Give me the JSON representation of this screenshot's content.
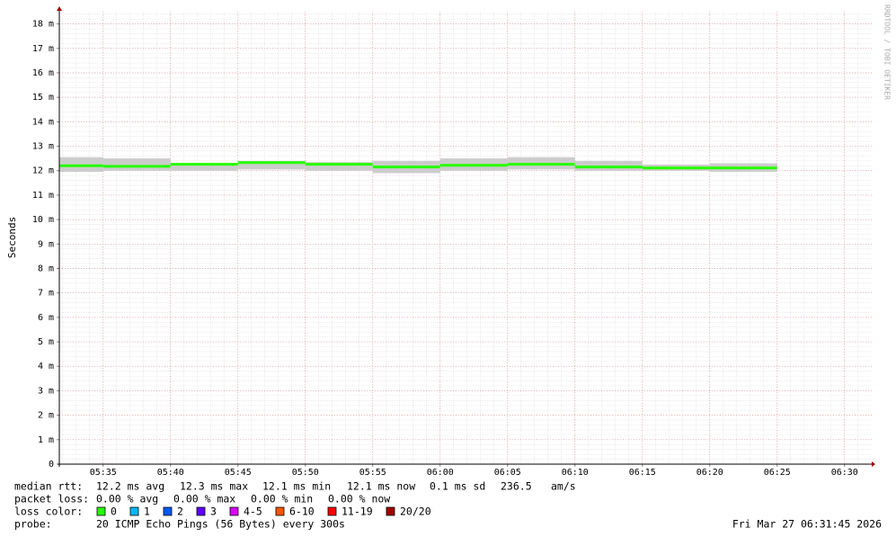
{
  "chart_data": {
    "type": "smokeping",
    "y_label": "Seconds",
    "watermark": "RRDTOOL / TOBI OETIKER",
    "xlim": [
      "05:31:45",
      "06:31:45"
    ],
    "xticks": [
      "05:35",
      "05:40",
      "05:45",
      "05:50",
      "05:55",
      "06:00",
      "06:05",
      "06:10",
      "06:15",
      "06:20",
      "06:25",
      "06:30"
    ],
    "x": [
      "05:35",
      "05:40",
      "05:45",
      "05:50",
      "05:55",
      "06:00",
      "06:05",
      "06:10",
      "06:15",
      "06:20",
      "06:25"
    ],
    "ylim": [
      0,
      0.0185
    ],
    "yticks": [
      0,
      {
        "value": 0.001,
        "label": "1 m"
      },
      {
        "value": 0.002,
        "label": "2 m"
      },
      {
        "value": 0.003,
        "label": "3 m"
      },
      {
        "value": 0.004,
        "label": "4 m"
      },
      {
        "value": 0.005,
        "label": "5 m"
      },
      {
        "value": 0.006,
        "label": "6 m"
      },
      {
        "value": 0.007,
        "label": "7 m"
      },
      {
        "value": 0.008,
        "label": "8 m"
      },
      {
        "value": 0.009,
        "label": "9 m"
      },
      {
        "value": 0.01,
        "label": "10 m"
      },
      {
        "value": 0.011,
        "label": "11 m"
      },
      {
        "value": 0.012,
        "label": "12 m"
      },
      {
        "value": 0.013,
        "label": "13 m"
      },
      {
        "value": 0.014,
        "label": "14 m"
      },
      {
        "value": 0.015,
        "label": "15 m"
      },
      {
        "value": 0.016,
        "label": "16 m"
      },
      {
        "value": 0.017,
        "label": "17 m"
      },
      {
        "value": 0.018,
        "label": "18 m"
      }
    ],
    "grid": true,
    "smoke": {
      "color": "#cccccc",
      "low": [
        0.01195,
        0.012,
        0.012,
        0.01205,
        0.012,
        0.0119,
        0.012,
        0.01205,
        0.012,
        0.012,
        0.01195
      ],
      "high": [
        0.01255,
        0.0125,
        0.0123,
        0.0124,
        0.01235,
        0.0124,
        0.0125,
        0.01255,
        0.0124,
        0.01225,
        0.0123
      ]
    },
    "series": [
      {
        "name": "median rtt:",
        "color": "#26ff00",
        "values": [
          0.0122,
          0.01218,
          0.01226,
          0.01233,
          0.01226,
          0.01215,
          0.01222,
          0.01226,
          0.01215,
          0.01211,
          0.01211
        ]
      }
    ],
    "stats": [
      {
        "label": "median rtt:",
        "items": [
          "12.2 ms avg",
          "12.3 ms max",
          "12.1 ms min",
          "12.1 ms now",
          "0.1 ms sd",
          "236.5",
          "am/s"
        ]
      },
      {
        "label": "packet loss:",
        "items": [
          "0.00 % avg",
          "0.00 % max",
          "0.00 % min",
          "0.00 % now"
        ]
      }
    ],
    "loss_colors": {
      "label": "loss color:",
      "entries": [
        {
          "name": "0",
          "color": "#26ff00"
        },
        {
          "name": "1",
          "color": "#00b8ff"
        },
        {
          "name": "2",
          "color": "#0059ff"
        },
        {
          "name": "3",
          "color": "#5e00ff"
        },
        {
          "name": "4-5",
          "color": "#dd00ff"
        },
        {
          "name": "6-10",
          "color": "#fe5500"
        },
        {
          "name": "11-19",
          "color": "#ff0000"
        },
        {
          "name": "20/20",
          "color": "#a10000"
        }
      ]
    },
    "probe": {
      "label": "probe:",
      "text": "20 ICMP Echo Pings (56 Bytes) every 300s"
    },
    "timestamp": "Fri Mar 27 06:31:45 2026"
  }
}
